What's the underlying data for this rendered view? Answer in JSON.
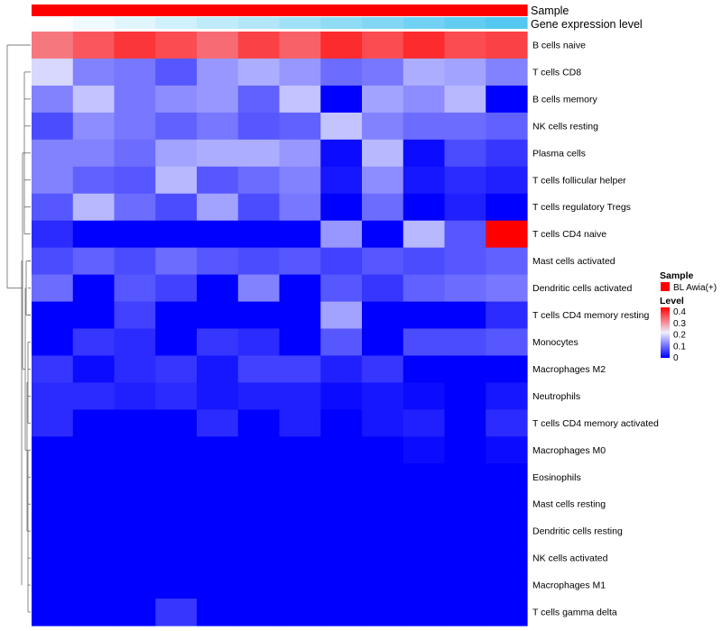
{
  "chart_data": {
    "type": "heatmap",
    "rows": [
      "B cells naive",
      "T cells CD8",
      "B cells memory",
      "NK cells resting",
      "Plasma cells",
      "T cells follicular helper",
      "T cells regulatory  Tregs",
      "T cells CD4 naive",
      "Mast cells activated",
      "Dendritic cells activated",
      "T cells CD4 memory resting",
      "Monocytes",
      "Macrophages M2",
      "Neutrophils",
      "T cells CD4 memory activated",
      "Macrophages M0",
      "Eosinophils",
      "Mast cells resting",
      "Dendritic cells resting",
      "NK cells activated",
      "Macrophages M1",
      "T cells gamma delta"
    ],
    "values": [
      [
        0.33,
        0.36,
        0.39,
        0.37,
        0.34,
        0.38,
        0.35,
        0.4,
        0.37,
        0.4,
        0.37,
        0.38
      ],
      [
        0.2,
        0.12,
        0.11,
        0.08,
        0.14,
        0.16,
        0.14,
        0.1,
        0.11,
        0.16,
        0.15,
        0.12
      ],
      [
        0.12,
        0.18,
        0.11,
        0.13,
        0.14,
        0.09,
        0.18,
        0.0,
        0.15,
        0.13,
        0.17,
        0.0
      ],
      [
        0.07,
        0.13,
        0.11,
        0.09,
        0.11,
        0.08,
        0.09,
        0.18,
        0.12,
        0.1,
        0.1,
        0.09
      ],
      [
        0.12,
        0.12,
        0.1,
        0.15,
        0.16,
        0.16,
        0.14,
        0.01,
        0.17,
        0.01,
        0.07,
        0.05
      ],
      [
        0.12,
        0.09,
        0.08,
        0.17,
        0.08,
        0.1,
        0.12,
        0.02,
        0.13,
        0.02,
        0.04,
        0.03
      ],
      [
        0.08,
        0.17,
        0.1,
        0.07,
        0.15,
        0.07,
        0.11,
        0.0,
        0.1,
        0.0,
        0.03,
        0.0
      ],
      [
        0.04,
        0.0,
        0.0,
        0.0,
        0.0,
        0.0,
        0.0,
        0.14,
        0.0,
        0.17,
        0.08,
        0.44
      ],
      [
        0.07,
        0.09,
        0.07,
        0.1,
        0.08,
        0.07,
        0.08,
        0.06,
        0.08,
        0.07,
        0.08,
        0.09
      ],
      [
        0.1,
        0.0,
        0.08,
        0.06,
        0.0,
        0.12,
        0.0,
        0.08,
        0.05,
        0.09,
        0.1,
        0.11
      ],
      [
        0.0,
        0.0,
        0.06,
        0.0,
        0.0,
        0.0,
        0.0,
        0.15,
        0.0,
        0.0,
        0.0,
        0.04
      ],
      [
        0.0,
        0.05,
        0.04,
        0.0,
        0.05,
        0.04,
        0.0,
        0.08,
        0.0,
        0.07,
        0.07,
        0.08
      ],
      [
        0.05,
        0.01,
        0.04,
        0.05,
        0.02,
        0.06,
        0.06,
        0.03,
        0.05,
        0.0,
        0.0,
        0.0
      ],
      [
        0.04,
        0.04,
        0.03,
        0.04,
        0.02,
        0.03,
        0.03,
        0.01,
        0.02,
        0.01,
        0.0,
        0.02
      ],
      [
        0.04,
        0.0,
        0.0,
        0.0,
        0.04,
        0.0,
        0.03,
        0.0,
        0.02,
        0.03,
        0.0,
        0.04
      ],
      [
        0.0,
        0.0,
        0.0,
        0.0,
        0.0,
        0.0,
        0.0,
        0.0,
        0.0,
        0.01,
        0.0,
        0.01
      ],
      [
        0.0,
        0.0,
        0.0,
        0.0,
        0.0,
        0.0,
        0.0,
        0.0,
        0.0,
        0.0,
        0.0,
        0.0
      ],
      [
        0.0,
        0.0,
        0.0,
        0.0,
        0.0,
        0.0,
        0.0,
        0.0,
        0.0,
        0.0,
        0.0,
        0.0
      ],
      [
        0.0,
        0.0,
        0.0,
        0.0,
        0.0,
        0.0,
        0.0,
        0.0,
        0.0,
        0.0,
        0.0,
        0.0
      ],
      [
        0.0,
        0.0,
        0.0,
        0.0,
        0.0,
        0.0,
        0.0,
        0.0,
        0.0,
        0.0,
        0.0,
        0.0
      ],
      [
        0.0,
        0.0,
        0.0,
        0.0,
        0.0,
        0.0,
        0.0,
        0.0,
        0.0,
        0.0,
        0.0,
        0.0
      ],
      [
        0.0,
        0.0,
        0.0,
        0.05,
        0.0,
        0.0,
        0.0,
        0.0,
        0.0,
        0.0,
        0.0,
        0.0
      ]
    ],
    "annotations": {
      "sample": {
        "label": "Sample",
        "color": "#ff0000",
        "legend_title": "Sample",
        "legend_entry": "BL Awia(+)"
      },
      "gene_expression_level": {
        "label": "Gene expression level",
        "values": [
          0.0,
          0.07,
          0.13,
          0.2,
          0.27,
          0.33,
          0.4,
          0.47,
          0.53,
          0.6,
          0.67,
          0.73
        ],
        "low_color": "#ffffff",
        "high_color": "#54c8f0"
      }
    },
    "color_scale": {
      "legend_title": "Level",
      "range": [
        0,
        0.44
      ],
      "ticks": [
        0.4,
        0.3,
        0.2,
        0.1,
        0
      ],
      "low_color": "#0000ff",
      "mid_color": "#eeeeff",
      "high_color": "#ff0000",
      "mid_value": 0.22
    },
    "row_dendrogram": true,
    "legend_position": "right"
  }
}
